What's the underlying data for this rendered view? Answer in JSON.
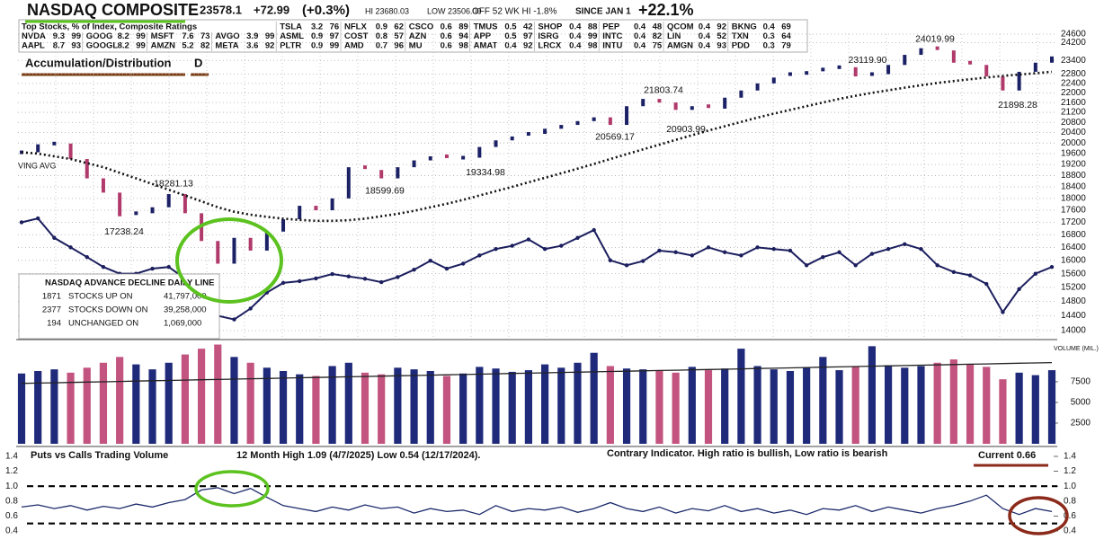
{
  "header": {
    "title": "NASDAQ COMPOSITE",
    "price": "23578.1",
    "change": "+72.99",
    "change_pct": "(+0.3%)",
    "high": "HI 23680.03",
    "low": "LOW 23506.00",
    "off_high": "OFF 52 WK HI -1.8%",
    "since_label": "SINCE JAN 1",
    "ytd": "+22.1%"
  },
  "top_stocks": {
    "title": "Top Stocks, % of Index, Composite Ratings",
    "rows": [
      [
        {
          "ticker": "TSLA",
          "weight": 3.2,
          "rating": 76
        },
        {
          "ticker": "NFLX",
          "weight": 0.9,
          "rating": 62
        },
        {
          "ticker": "CSCO",
          "weight": 0.6,
          "rating": 89
        },
        {
          "ticker": "TMUS",
          "weight": 0.5,
          "rating": 42
        },
        {
          "ticker": "SHOP",
          "weight": 0.4,
          "rating": 88
        },
        {
          "ticker": "PEP",
          "weight": 0.4,
          "rating": 48
        },
        {
          "ticker": "QCOM",
          "weight": 0.4,
          "rating": 92
        },
        {
          "ticker": "BKNG",
          "weight": 0.4,
          "rating": 69
        }
      ],
      [
        {
          "ticker": "NVDA",
          "weight": 9.3,
          "rating": 99
        },
        {
          "ticker": "GOOG",
          "weight": 8.2,
          "rating": 99
        },
        {
          "ticker": "MSFT",
          "weight": 7.6,
          "rating": 73
        },
        {
          "ticker": "AVGO",
          "weight": 3.9,
          "rating": 99
        },
        {
          "ticker": "ASML",
          "weight": 0.9,
          "rating": 97
        },
        {
          "ticker": "COST",
          "weight": 0.8,
          "rating": 57
        },
        {
          "ticker": "AZN",
          "weight": 0.6,
          "rating": 94
        },
        {
          "ticker": "APP",
          "weight": 0.5,
          "rating": 97
        },
        {
          "ticker": "ISRG",
          "weight": 0.4,
          "rating": 99
        },
        {
          "ticker": "INTC",
          "weight": 0.4,
          "rating": 82
        },
        {
          "ticker": "LIN",
          "weight": 0.4,
          "rating": 52
        },
        {
          "ticker": "TXN",
          "weight": 0.3,
          "rating": 64
        }
      ],
      [
        {
          "ticker": "AAPL",
          "weight": 8.7,
          "rating": 93
        },
        {
          "ticker": "GOOGL",
          "weight": 8.2,
          "rating": 99
        },
        {
          "ticker": "AMZN",
          "weight": 5.2,
          "rating": 82
        },
        {
          "ticker": "META",
          "weight": 3.6,
          "rating": 92
        },
        {
          "ticker": "PLTR",
          "weight": 0.9,
          "rating": 99
        },
        {
          "ticker": "AMD",
          "weight": 0.7,
          "rating": 96
        },
        {
          "ticker": "MU",
          "weight": 0.6,
          "rating": 98
        },
        {
          "ticker": "AMAT",
          "weight": 0.4,
          "rating": 92
        },
        {
          "ticker": "LRCX",
          "weight": 0.4,
          "rating": 98
        },
        {
          "ticker": "INTU",
          "weight": 0.4,
          "rating": 75
        },
        {
          "ticker": "AMGN",
          "weight": 0.4,
          "rating": 93
        },
        {
          "ticker": "PDD",
          "weight": 0.3,
          "rating": 79
        }
      ]
    ]
  },
  "ad_stats": {
    "title": "NASDAQ ADVANCE DECLINE DAILY LINE",
    "rows": [
      {
        "count": 1871,
        "label": "STOCKS UP ON",
        "volume": "41,797,000"
      },
      {
        "count": 2377,
        "label": "STOCKS DOWN ON",
        "volume": "39,258,000"
      },
      {
        "count": 194,
        "label": "UNCHANGED ON",
        "volume": "1,069,000"
      }
    ]
  },
  "chart_data": [
    {
      "type": "line",
      "ad_label": "Accumulation/Distribution",
      "ad_rating": "D",
      "ma_label": "VING AVG",
      "log_scale": true,
      "grid": true,
      "ylim": [
        14000,
        24600
      ],
      "yticks": [
        24600,
        24200,
        23400,
        22800,
        22400,
        22000,
        21600,
        21200,
        20800,
        20400,
        20000,
        19600,
        19200,
        18800,
        18400,
        18000,
        17600,
        17200,
        16800,
        16400,
        16000,
        15600,
        15200,
        14800,
        14400,
        14000
      ],
      "series": [
        {
          "style": "bars",
          "color": "#1c2166",
          "down_color": "#b03a6b",
          "values": [
            19650,
            19950,
            19980,
            19400,
            18700,
            18200,
            17400,
            17500,
            17700,
            18150,
            17500,
            16600,
            15900,
            16700,
            16300,
            16900,
            17300,
            17750,
            17600,
            18000,
            19100,
            19000,
            18700,
            19100,
            19350,
            19500,
            19400,
            19450,
            19850,
            20100,
            20250,
            20350,
            20550,
            20700,
            20850,
            21000,
            20700,
            21450,
            21750,
            21600,
            21300,
            21450,
            21350,
            21800,
            22100,
            22400,
            22650,
            22800,
            22850,
            23000,
            23100,
            22700,
            22800,
            23200,
            23650,
            23950,
            23850,
            23300,
            23200,
            22700,
            22100,
            22900,
            23300,
            23578.1
          ]
        },
        {
          "style": "dotted",
          "color": "#111111",
          "values": [
            19650,
            19600,
            19500,
            19400,
            19250,
            19100,
            18900,
            18700,
            18500,
            18300,
            18100,
            17900,
            17700,
            17550,
            17450,
            17380,
            17320,
            17280,
            17250,
            17250,
            17270,
            17320,
            17400,
            17480,
            17580,
            17700,
            17820,
            17950,
            18100,
            18250,
            18400,
            18560,
            18720,
            18880,
            19050,
            19220,
            19400,
            19580,
            19760,
            19940,
            20120,
            20300,
            20480,
            20650,
            20820,
            20990,
            21150,
            21300,
            21450,
            21600,
            21750,
            21880,
            22000,
            22110,
            22220,
            22320,
            22420,
            22500,
            22580,
            22650,
            22720,
            22780,
            22840,
            22900
          ]
        },
        {
          "style": "markers",
          "color": "#1c1f5e",
          "values": [
            17200,
            17330,
            16700,
            16400,
            16100,
            15800,
            15600,
            15600,
            15750,
            15800,
            15450,
            14950,
            14400,
            14300,
            14600,
            15050,
            15330,
            15380,
            15460,
            15590,
            15520,
            15450,
            15350,
            15500,
            15720,
            15990,
            15750,
            15900,
            16150,
            16350,
            16450,
            16650,
            16350,
            16450,
            16700,
            16950,
            16000,
            15850,
            15980,
            16300,
            16250,
            16150,
            16400,
            16250,
            16150,
            16400,
            16350,
            16300,
            15850,
            16100,
            16250,
            15850,
            16200,
            16350,
            16500,
            16350,
            15850,
            15650,
            15550,
            15300,
            14500,
            15150,
            15600,
            15800
          ]
        }
      ],
      "annotations": [
        {
          "value": 24019.99,
          "label": "24019.99"
        },
        {
          "value": 23119.9,
          "label": "23119.90"
        },
        {
          "value": 21803.74,
          "label": "21803.74"
        },
        {
          "value": 20569.17,
          "label": "20569.17"
        },
        {
          "value": 20903.99,
          "label": "20903.99"
        },
        {
          "value": 21898.28,
          "label": "21898.28"
        },
        {
          "value": 19334.98,
          "label": "19334.98"
        },
        {
          "value": 18599.69,
          "label": "18599.69"
        },
        {
          "value": 18281.13,
          "label": "18281.13"
        },
        {
          "value": 17238.24,
          "label": "17238.24"
        }
      ]
    },
    {
      "type": "bar",
      "ylabel": "VOLUME (MIL.)",
      "ylim": [
        0,
        12600
      ],
      "yticks": [
        7500,
        5000,
        2500
      ],
      "grid": false,
      "series": [
        {
          "style": "bars",
          "color": "#1f2a7a",
          "down_color": "#c2547f",
          "values": [
            8500,
            8800,
            9000,
            8600,
            9200,
            9800,
            10500,
            9600,
            9000,
            9800,
            10800,
            11500,
            12000,
            10500,
            9800,
            9200,
            8800,
            8400,
            8200,
            9400,
            9800,
            8600,
            8400,
            9200,
            9000,
            8800,
            8200,
            8500,
            9300,
            9100,
            8700,
            8900,
            9600,
            9200,
            9800,
            11000,
            9400,
            9100,
            9000,
            8800,
            8600,
            9300,
            8900,
            9100,
            11500,
            9400,
            9000,
            8800,
            9200,
            10500,
            8900,
            9300,
            11800,
            9500,
            9200,
            9400,
            9800,
            10200,
            9600,
            9300,
            7800,
            8600,
            8300,
            8900
          ]
        },
        {
          "style": "line",
          "color": "#222222",
          "values": [
            7300,
            7340,
            7380,
            7420,
            7460,
            7500,
            7540,
            7580,
            7620,
            7660,
            7700,
            7740,
            7780,
            7820,
            7860,
            7900,
            7940,
            7980,
            8020,
            8060,
            8100,
            8140,
            8180,
            8220,
            8260,
            8300,
            8340,
            8380,
            8420,
            8460,
            8500,
            8540,
            8580,
            8620,
            8660,
            8700,
            8740,
            8780,
            8820,
            8860,
            8900,
            8940,
            8980,
            9020,
            9060,
            9100,
            9140,
            9180,
            9220,
            9260,
            9300,
            9340,
            9380,
            9420,
            9460,
            9500,
            9540,
            9580,
            9620,
            9660,
            9700,
            9740,
            9780,
            9820
          ]
        }
      ]
    },
    {
      "type": "line",
      "title": "Puts vs Calls Trading Volume",
      "note": "12 Month High 1.09 (4/7/2025)  Low 0.54 (12/17/2024).",
      "contrary": "Contrary Indicator. High ratio is bullish, Low ratio is bearish",
      "current": "Current 0.66",
      "ylim": [
        0.4,
        1.4
      ],
      "yticks": [
        1.4,
        1.2,
        {
          "value": 1,
          "label": "1.0"
        },
        0.8,
        0.6,
        0.4
      ],
      "grid": false,
      "hlines": [
        1,
        0.5
      ],
      "series": [
        {
          "style": "line",
          "color": "#1c2a6b",
          "values": [
            0.72,
            0.75,
            0.7,
            0.74,
            0.68,
            0.73,
            0.7,
            0.76,
            0.72,
            0.78,
            0.82,
            0.95,
            0.98,
            0.9,
            0.97,
            0.85,
            0.74,
            0.7,
            0.66,
            0.72,
            0.68,
            0.75,
            0.7,
            0.72,
            0.64,
            0.7,
            0.66,
            0.68,
            0.62,
            0.74,
            0.66,
            0.7,
            0.68,
            0.72,
            0.65,
            0.7,
            0.78,
            0.7,
            0.66,
            0.72,
            0.64,
            0.7,
            0.67,
            0.74,
            0.66,
            0.7,
            0.64,
            0.68,
            0.62,
            0.7,
            0.68,
            0.74,
            0.66,
            0.72,
            0.68,
            0.64,
            0.7,
            0.74,
            0.8,
            0.88,
            0.7,
            0.62,
            0.7,
            0.66
          ]
        }
      ]
    }
  ]
}
